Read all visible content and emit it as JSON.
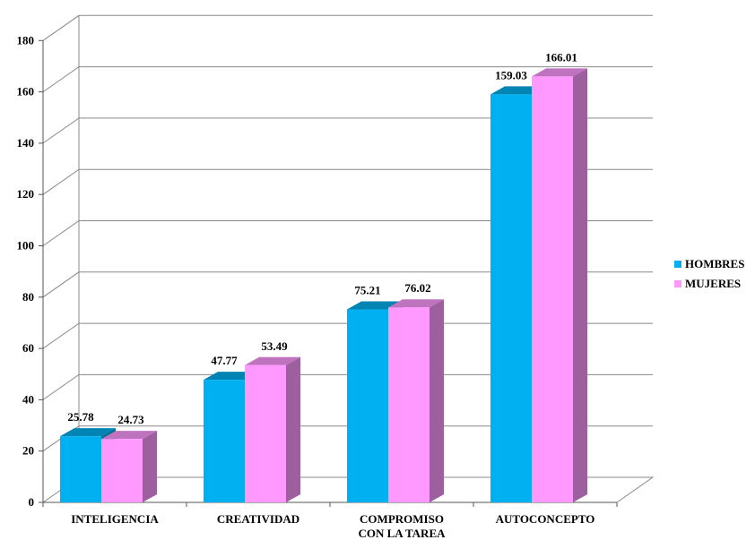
{
  "chart_data": {
    "type": "bar",
    "title": "",
    "xlabel": "",
    "ylabel": "",
    "categories": [
      "INTELIGENCIA",
      "CREATIVIDAD",
      "COMPROMISO CON LA TAREA",
      "AUTOCONCEPTO"
    ],
    "category_lines": [
      [
        "INTELIGENCIA"
      ],
      [
        "CREATIVIDAD"
      ],
      [
        "COMPROMISO",
        "CON LA TAREA"
      ],
      [
        "AUTOCONCEPTO"
      ]
    ],
    "series": [
      {
        "name": "HOMBRES",
        "values": [
          25.78,
          47.77,
          75.21,
          159.03
        ],
        "color": "#00b0f0"
      },
      {
        "name": "MUJERES",
        "values": [
          24.73,
          53.49,
          76.02,
          166.01
        ],
        "color": "#ff99ff"
      }
    ],
    "value_labels": {
      "HOMBRES": [
        "25.78",
        "47.77",
        "75.21",
        "159.03"
      ],
      "MUJERES": [
        "24.73",
        "53.49",
        "76.02",
        "166.01"
      ]
    },
    "ylim": [
      0,
      180
    ],
    "yticks": [
      "0",
      "20",
      "40",
      "60",
      "80",
      "100",
      "120",
      "140",
      "160",
      "180"
    ],
    "grid": true,
    "legend_position": "right"
  }
}
